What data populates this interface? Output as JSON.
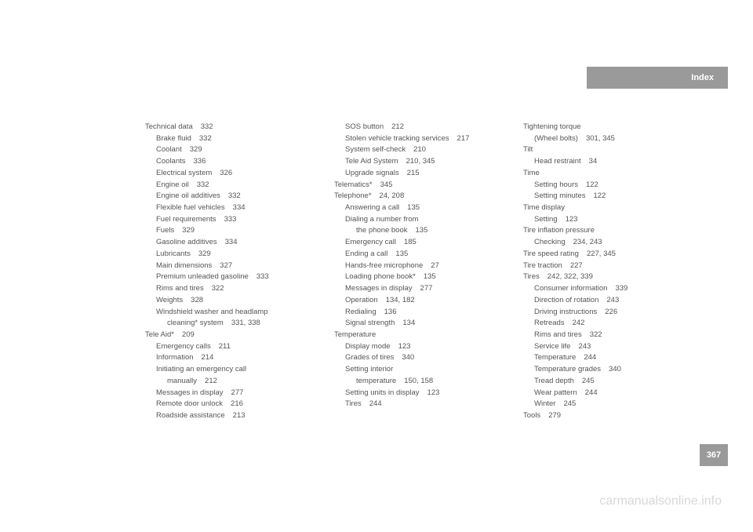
{
  "header": {
    "title": "Index"
  },
  "pageNumber": "367",
  "watermark": "carmanualsonline.info",
  "columns": [
    [
      {
        "t": "Technical data",
        "p": "332",
        "l": 0
      },
      {
        "t": "Brake fluid",
        "p": "332",
        "l": 1
      },
      {
        "t": "Coolant",
        "p": "329",
        "l": 1
      },
      {
        "t": "Coolants",
        "p": "336",
        "l": 1
      },
      {
        "t": "Electrical system",
        "p": "326",
        "l": 1
      },
      {
        "t": "Engine oil",
        "p": "332",
        "l": 1
      },
      {
        "t": "Engine oil additives",
        "p": "332",
        "l": 1
      },
      {
        "t": "Flexible fuel vehicles",
        "p": "334",
        "l": 1
      },
      {
        "t": "Fuel requirements",
        "p": "333",
        "l": 1
      },
      {
        "t": "Fuels",
        "p": "329",
        "l": 1
      },
      {
        "t": "Gasoline additives",
        "p": "334",
        "l": 1
      },
      {
        "t": "Lubricants",
        "p": "329",
        "l": 1
      },
      {
        "t": "Main dimensions",
        "p": "327",
        "l": 1
      },
      {
        "t": "Premium unleaded gasoline",
        "p": "333",
        "l": 1
      },
      {
        "t": "Rims and tires",
        "p": "322",
        "l": 1
      },
      {
        "t": "Weights",
        "p": "328",
        "l": 1
      },
      {
        "t": "Windshield washer and headlamp",
        "p": "",
        "l": 1
      },
      {
        "t": "cleaning* system",
        "p": "331, 338",
        "l": 2
      },
      {
        "t": "Tele Aid*",
        "p": "209",
        "l": 0
      },
      {
        "t": "Emergency calls",
        "p": "211",
        "l": 1
      },
      {
        "t": "Information",
        "p": "214",
        "l": 1
      },
      {
        "t": "Initiating an emergency call",
        "p": "",
        "l": 1
      },
      {
        "t": "manually",
        "p": "212",
        "l": 2
      },
      {
        "t": "Messages in display",
        "p": "277",
        "l": 1
      },
      {
        "t": "Remote door unlock",
        "p": "216",
        "l": 1
      },
      {
        "t": "Roadside assistance",
        "p": "213",
        "l": 1
      }
    ],
    [
      {
        "t": "SOS button",
        "p": "212",
        "l": 1
      },
      {
        "t": "Stolen vehicle tracking services",
        "p": "217",
        "l": 1
      },
      {
        "t": "System self-check",
        "p": "210",
        "l": 1
      },
      {
        "t": "Tele Aid System",
        "p": "210, 345",
        "l": 1
      },
      {
        "t": "Upgrade signals",
        "p": "215",
        "l": 1
      },
      {
        "t": "Telematics*",
        "p": "345",
        "l": 0
      },
      {
        "t": "Telephone*",
        "p": "24, 208",
        "l": 0
      },
      {
        "t": "Answering a call",
        "p": "135",
        "l": 1
      },
      {
        "t": "Dialing a number from",
        "p": "",
        "l": 1
      },
      {
        "t": "the phone book",
        "p": "135",
        "l": 2
      },
      {
        "t": "Emergency call",
        "p": "185",
        "l": 1
      },
      {
        "t": "Ending a call",
        "p": "135",
        "l": 1
      },
      {
        "t": "Hands-free microphone",
        "p": "27",
        "l": 1
      },
      {
        "t": "Loading phone book*",
        "p": "135",
        "l": 1
      },
      {
        "t": "Messages in display",
        "p": "277",
        "l": 1
      },
      {
        "t": "Operation",
        "p": "134, 182",
        "l": 1
      },
      {
        "t": "Redialing",
        "p": "136",
        "l": 1
      },
      {
        "t": "Signal strength",
        "p": "134",
        "l": 1
      },
      {
        "t": "Temperature",
        "p": "",
        "l": 0
      },
      {
        "t": "Display mode",
        "p": "123",
        "l": 1
      },
      {
        "t": "Grades of tires",
        "p": "340",
        "l": 1
      },
      {
        "t": "Setting interior",
        "p": "",
        "l": 1
      },
      {
        "t": "temperature",
        "p": "150, 158",
        "l": 2
      },
      {
        "t": "Setting units in display",
        "p": "123",
        "l": 1
      },
      {
        "t": "Tires",
        "p": "244",
        "l": 1
      }
    ],
    [
      {
        "t": "Tightening torque",
        "p": "",
        "l": 0
      },
      {
        "t": "(Wheel bolts)",
        "p": "301, 345",
        "l": 1
      },
      {
        "t": "Tilt",
        "p": "",
        "l": 0
      },
      {
        "t": "Head restraint",
        "p": "34",
        "l": 1
      },
      {
        "t": "Time",
        "p": "",
        "l": 0
      },
      {
        "t": "Setting hours",
        "p": "122",
        "l": 1
      },
      {
        "t": "Setting minutes",
        "p": "122",
        "l": 1
      },
      {
        "t": "Time display",
        "p": "",
        "l": 0
      },
      {
        "t": "Setting",
        "p": "123",
        "l": 1
      },
      {
        "t": "Tire inflation pressure",
        "p": "",
        "l": 0
      },
      {
        "t": "Checking",
        "p": "234, 243",
        "l": 1
      },
      {
        "t": "Tire speed rating",
        "p": "227, 345",
        "l": 0
      },
      {
        "t": "Tire traction",
        "p": "227",
        "l": 0
      },
      {
        "t": "Tires",
        "p": "242, 322, 339",
        "l": 0
      },
      {
        "t": "Consumer information",
        "p": "339",
        "l": 1
      },
      {
        "t": "Direction of rotation",
        "p": "243",
        "l": 1
      },
      {
        "t": "Driving instructions",
        "p": "226",
        "l": 1
      },
      {
        "t": "Retreads",
        "p": "242",
        "l": 1
      },
      {
        "t": "Rims and tires",
        "p": "322",
        "l": 1
      },
      {
        "t": "Service life",
        "p": "243",
        "l": 1
      },
      {
        "t": "Temperature",
        "p": "244",
        "l": 1
      },
      {
        "t": "Temperature grades",
        "p": "340",
        "l": 1
      },
      {
        "t": "Tread depth",
        "p": "245",
        "l": 1
      },
      {
        "t": "Wear pattern",
        "p": "244",
        "l": 1
      },
      {
        "t": "Winter",
        "p": "245",
        "l": 1
      },
      {
        "t": "Tools",
        "p": "279",
        "l": 0
      }
    ]
  ]
}
